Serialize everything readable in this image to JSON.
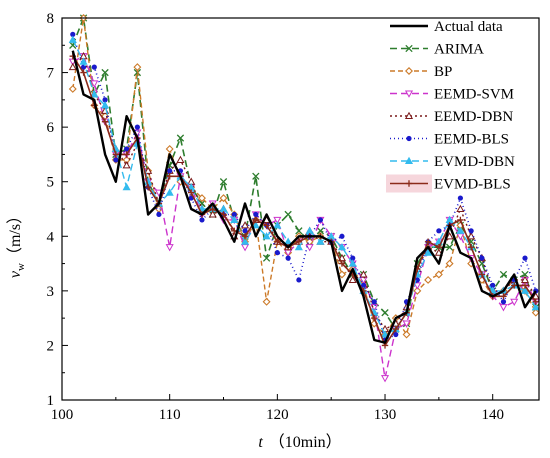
{
  "chart_data": {
    "type": "line",
    "title": "",
    "xlabel": {
      "symbol": "t",
      "unit": "（10min）"
    },
    "ylabel": {
      "symbol": "v",
      "subscript": "w",
      "unit": "（m/s）"
    },
    "xlim": [
      101,
      144
    ],
    "ylim": [
      1,
      8
    ],
    "xticks": [
      100,
      110,
      120,
      130,
      140
    ],
    "yticks": [
      1,
      2,
      3,
      4,
      5,
      6,
      7,
      8
    ],
    "legend_position": "top-right",
    "x": [
      101,
      102,
      103,
      104,
      105,
      106,
      107,
      108,
      109,
      110,
      111,
      112,
      113,
      114,
      115,
      116,
      117,
      118,
      119,
      120,
      121,
      122,
      123,
      124,
      125,
      126,
      127,
      128,
      129,
      130,
      131,
      132,
      133,
      134,
      135,
      136,
      137,
      138,
      139,
      140,
      141,
      142,
      143,
      144
    ],
    "series": [
      {
        "name": "Actual data",
        "color": "#000000",
        "dash": "",
        "width": 2.4,
        "marker": "none",
        "values": [
          7.4,
          6.6,
          6.5,
          5.5,
          5.0,
          6.2,
          5.8,
          4.4,
          4.6,
          5.5,
          5.1,
          4.5,
          4.4,
          4.6,
          4.3,
          3.9,
          4.6,
          4.0,
          4.4,
          4.0,
          3.8,
          4.0,
          4.0,
          4.0,
          3.9,
          3.0,
          3.4,
          2.9,
          2.1,
          2.05,
          2.5,
          2.6,
          3.6,
          3.8,
          3.5,
          4.2,
          3.7,
          3.6,
          3.0,
          2.9,
          3.0,
          3.3,
          2.7,
          3.0
        ]
      },
      {
        "name": "ARIMA",
        "color": "#2e7d2e",
        "dash": "7,4",
        "width": 1.6,
        "marker": "x",
        "values": [
          7.5,
          8.0,
          6.6,
          7.0,
          5.5,
          5.6,
          7.0,
          5.0,
          4.6,
          5.3,
          5.8,
          4.9,
          4.6,
          4.4,
          5.0,
          4.3,
          4.0,
          5.1,
          3.6,
          4.2,
          4.4,
          4.1,
          3.9,
          4.1,
          4.0,
          3.6,
          3.3,
          3.3,
          2.8,
          2.6,
          2.3,
          2.4,
          3.5,
          3.8,
          3.8,
          3.8,
          4.2,
          3.9,
          3.5,
          3.0,
          3.3,
          3.2,
          3.3,
          2.7
        ]
      },
      {
        "name": "BP",
        "color": "#cc7a29",
        "dash": "5,3",
        "width": 1.4,
        "marker": "diamond",
        "values": [
          6.7,
          8.0,
          6.4,
          6.2,
          5.4,
          5.4,
          7.1,
          5.2,
          4.5,
          5.6,
          5.0,
          4.9,
          4.7,
          4.5,
          4.7,
          4.4,
          3.9,
          4.3,
          2.8,
          3.9,
          3.7,
          4.0,
          3.9,
          4.0,
          3.9,
          3.3,
          3.4,
          3.1,
          2.4,
          2.2,
          2.5,
          2.2,
          3.0,
          3.2,
          3.3,
          3.5,
          4.2,
          3.5,
          3.2,
          2.9,
          3.0,
          3.2,
          3.0,
          2.6
        ]
      },
      {
        "name": "EEMD-SVM",
        "color": "#cc33cc",
        "dash": "7,4",
        "width": 1.4,
        "marker": "triangle-down",
        "values": [
          7.2,
          7.3,
          6.8,
          6.1,
          5.5,
          5.5,
          5.9,
          5.0,
          4.8,
          3.8,
          5.1,
          4.9,
          4.4,
          4.6,
          4.3,
          4.3,
          3.8,
          4.4,
          4.2,
          4.3,
          3.7,
          3.9,
          3.8,
          4.3,
          4.0,
          3.8,
          3.5,
          3.2,
          2.7,
          1.4,
          2.3,
          2.4,
          3.1,
          3.8,
          3.9,
          4.3,
          4.0,
          3.6,
          3.3,
          2.9,
          2.7,
          2.8,
          3.2,
          2.8
        ]
      },
      {
        "name": "EEMD-DBN",
        "color": "#7a1a1a",
        "dash": "2,3",
        "width": 1.4,
        "marker": "triangle-up",
        "values": [
          7.1,
          7.3,
          6.6,
          6.3,
          5.6,
          5.3,
          5.7,
          5.2,
          4.6,
          5.2,
          5.4,
          5.0,
          4.5,
          4.4,
          4.5,
          4.0,
          4.2,
          4.3,
          4.3,
          3.9,
          3.8,
          3.9,
          4.1,
          3.9,
          3.9,
          3.6,
          3.2,
          3.3,
          2.6,
          2.3,
          2.4,
          2.7,
          3.4,
          3.8,
          3.7,
          4.0,
          4.5,
          4.0,
          3.6,
          3.0,
          3.0,
          3.2,
          3.2,
          2.9
        ]
      },
      {
        "name": "EEMD-BLS",
        "color": "#1a1acc",
        "dash": "1,3",
        "width": 1.6,
        "marker": "dot",
        "values": [
          7.7,
          7.1,
          7.1,
          6.5,
          5.4,
          5.6,
          6.0,
          4.9,
          4.4,
          5.2,
          5.2,
          4.7,
          4.3,
          4.5,
          4.4,
          4.4,
          4.1,
          4.4,
          4.2,
          3.7,
          3.6,
          3.2,
          4.0,
          4.3,
          3.9,
          4.0,
          3.6,
          3.1,
          2.8,
          2.1,
          2.2,
          2.8,
          3.2,
          3.9,
          4.1,
          4.2,
          4.7,
          4.1,
          3.6,
          3.1,
          2.8,
          3.2,
          3.6,
          3.0
        ]
      },
      {
        "name": "EVMD-DBN",
        "color": "#33bbee",
        "dash": "7,4",
        "width": 1.4,
        "marker": "triangle-up",
        "values": [
          7.6,
          7.2,
          6.6,
          6.4,
          5.6,
          4.9,
          5.7,
          5.0,
          4.6,
          4.8,
          5.1,
          4.9,
          4.5,
          4.5,
          4.5,
          4.3,
          3.9,
          4.2,
          4.0,
          4.2,
          3.9,
          3.8,
          4.1,
          3.9,
          4.0,
          3.8,
          3.5,
          3.0,
          2.6,
          2.2,
          2.3,
          2.6,
          3.3,
          3.7,
          3.9,
          4.3,
          4.1,
          3.8,
          3.3,
          3.0,
          3.0,
          3.1,
          3.0,
          2.7
        ]
      },
      {
        "name": "EVMD-BLS",
        "color": "#8b2a1a",
        "dash": "",
        "width": 1.6,
        "marker": "plus",
        "values": [
          7.3,
          7.0,
          6.4,
          6.1,
          5.5,
          5.5,
          5.8,
          4.9,
          4.6,
          5.1,
          5.1,
          4.8,
          4.4,
          4.5,
          4.4,
          4.1,
          4.0,
          4.3,
          4.2,
          3.9,
          3.8,
          3.9,
          4.0,
          4.0,
          3.9,
          3.5,
          3.3,
          3.0,
          2.5,
          2.0,
          2.3,
          2.6,
          3.4,
          3.9,
          3.8,
          4.2,
          4.3,
          3.8,
          3.3,
          2.9,
          2.9,
          3.1,
          3.1,
          2.8
        ]
      }
    ]
  }
}
